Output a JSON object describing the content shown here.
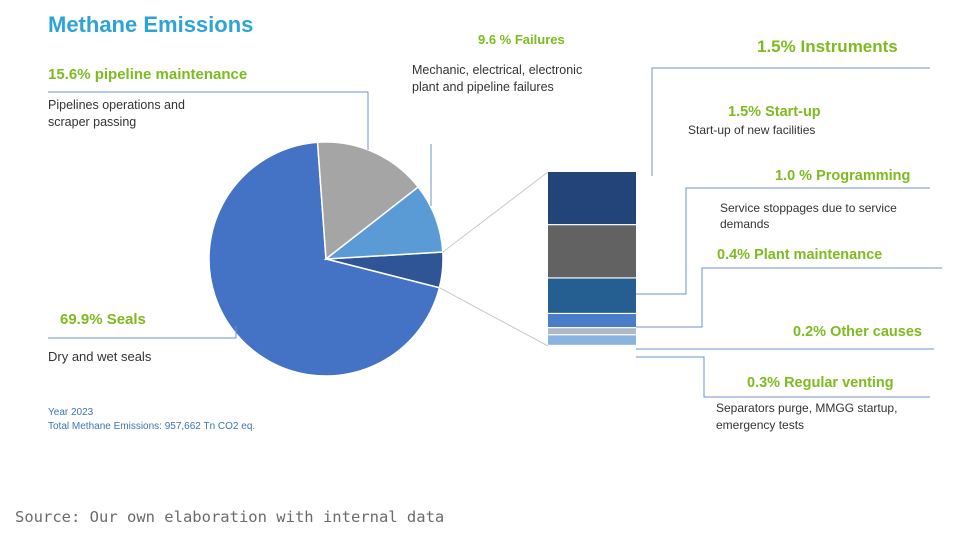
{
  "title": "Methane Emissions",
  "source": "Source: Our own elaboration with internal data",
  "meta": {
    "year": "Year 2023",
    "total": "Total Methane Emissions: 957,662 Tn CO2 eq."
  },
  "colors": {
    "seals": "#4472c4",
    "pipeline": "#a5a5a5",
    "failures": "#5b9bd5",
    "other": "#2f5597",
    "instruments": "#234478",
    "startup": "#626262",
    "programming": "#255e91",
    "plant": "#4a7ec8",
    "other_causes": "#b0b8c6",
    "venting": "#8ab4e0",
    "label_green": "#7dbb1f",
    "title_blue": "#2ea3d6",
    "leader": "#6f93c9"
  },
  "chart_data": [
    {
      "type": "pie",
      "title": "Methane Emissions",
      "slices": [
        {
          "key": "seals",
          "label": "69.9% Seals",
          "value": 69.9,
          "description": "Dry and wet seals"
        },
        {
          "key": "pipeline",
          "label": "15.6% pipeline maintenance",
          "value": 15.6,
          "description": "Pipelines operations and scraper passing"
        },
        {
          "key": "failures",
          "label": "9.6 % Failures",
          "value": 9.6,
          "description": "Mechanic, electrical, electronic plant and pipeline failures"
        },
        {
          "key": "other",
          "label": "",
          "value": 4.9,
          "description": ""
        }
      ]
    },
    {
      "type": "bar",
      "stacked": true,
      "segments": [
        {
          "key": "instruments",
          "label": "1.5% Instruments",
          "value": 1.5,
          "description": ""
        },
        {
          "key": "startup",
          "label": "1.5% Start-up",
          "value": 1.5,
          "description": "Start-up of new facilities"
        },
        {
          "key": "programming",
          "label": "1.0 % Programming",
          "value": 1.0,
          "description": "Service stoppages due to service demands"
        },
        {
          "key": "plant",
          "label": "0.4% Plant maintenance",
          "value": 0.4,
          "description": ""
        },
        {
          "key": "other_causes",
          "label": "0.2% Other causes",
          "value": 0.2,
          "description": ""
        },
        {
          "key": "venting",
          "label": "0.3% Regular venting",
          "value": 0.3,
          "description": "Separators purge, MMGG startup, emergency tests"
        }
      ]
    }
  ]
}
